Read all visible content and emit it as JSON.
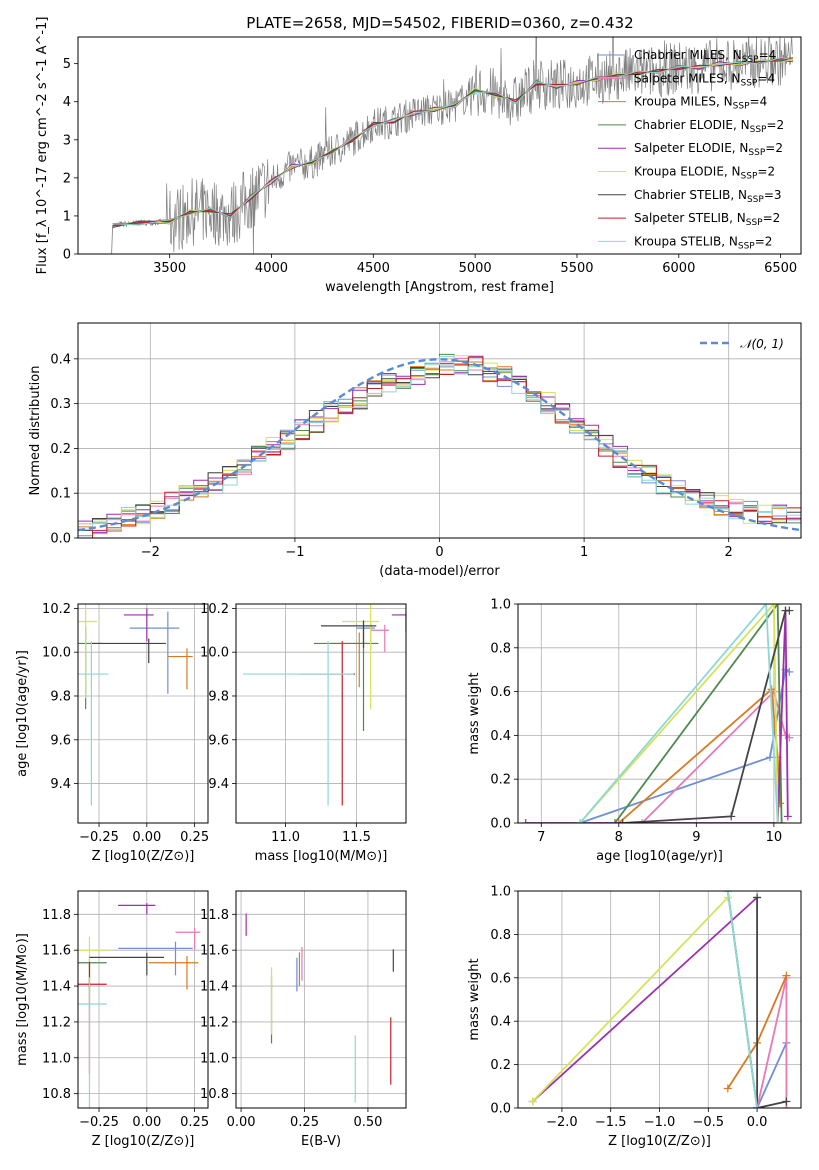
{
  "chart_data": [
    {
      "type": "line",
      "title": "PLATE=2658, MJD=54502, FIBERID=0360, z=0.432",
      "xlabel": "wavelength [Angstrom, rest frame]",
      "ylabel": "Flux [f_λ 10^-17 erg cm^-2 s^-1 A^-1]",
      "xlim": [
        3050,
        6600
      ],
      "ylim": [
        0,
        5.7
      ],
      "xticks": [
        3500,
        4000,
        4500,
        5000,
        5500,
        6000,
        6500
      ],
      "yticks": [
        0,
        1,
        2,
        3,
        4,
        5
      ],
      "grid": false,
      "legend_position": "upper-right",
      "data_color": "#808080",
      "model_continuum": {
        "x": [
          3220,
          3350,
          3500,
          3600,
          3700,
          3800,
          3900,
          4000,
          4100,
          4200,
          4300,
          4400,
          4500,
          4600,
          4700,
          4800,
          4900,
          5000,
          5100,
          5200,
          5300,
          5400,
          5500,
          5600,
          5700,
          5800,
          5900,
          6000,
          6100,
          6200,
          6300,
          6400,
          6500,
          6560
        ],
        "y": [
          0.75,
          0.82,
          0.85,
          1.1,
          1.15,
          1.0,
          1.5,
          1.9,
          2.3,
          2.4,
          2.7,
          3.0,
          3.4,
          3.5,
          3.7,
          3.8,
          3.9,
          4.3,
          4.2,
          4.0,
          4.5,
          4.4,
          4.5,
          4.6,
          4.7,
          4.75,
          4.8,
          4.9,
          4.9,
          5.0,
          5.0,
          5.05,
          5.1,
          5.1
        ]
      },
      "series": [
        {
          "name": "Chabrier MILES, N_SSP=4",
          "color": "#6f8fd9"
        },
        {
          "name": "Salpeter MILES, N_SSP=4",
          "color": "#e879b5"
        },
        {
          "name": "Kroupa MILES, N_SSP=4",
          "color": "#d97a22"
        },
        {
          "name": "Chabrier ELODIE, N_SSP=2",
          "color": "#4e8a4e"
        },
        {
          "name": "Salpeter ELODIE, N_SSP=2",
          "color": "#9b2fae"
        },
        {
          "name": "Kroupa ELODIE, N_SSP=2",
          "color": "#d4e35a"
        },
        {
          "name": "Chabrier STELIB, N_SSP=3",
          "color": "#444444"
        },
        {
          "name": "Salpeter STELIB, N_SSP=2",
          "color": "#c0202a"
        },
        {
          "name": "Kroupa STELIB, N_SSP=2",
          "color": "#8ed8d4"
        }
      ]
    },
    {
      "type": "line",
      "xlabel": "(data-model)/error",
      "ylabel": "Normed distribution",
      "xlim": [
        -2.5,
        2.5
      ],
      "ylim": [
        0,
        0.48
      ],
      "xticks": [
        -2,
        -1,
        0,
        1,
        2
      ],
      "yticks": [
        0.0,
        0.1,
        0.2,
        0.3,
        0.4
      ],
      "grid": true,
      "legend_position": "upper-right",
      "reference_curve": {
        "name": "𝒩(0, 1)",
        "style": "dashed",
        "color": "#5b8bd6"
      },
      "histogram_envelope": {
        "x": [
          -2.5,
          -2.3,
          -2.1,
          -1.9,
          -1.7,
          -1.5,
          -1.3,
          -1.1,
          -0.9,
          -0.7,
          -0.5,
          -0.3,
          -0.1,
          0.1,
          0.3,
          0.5,
          0.7,
          0.9,
          1.1,
          1.3,
          1.5,
          1.7,
          1.9,
          2.1,
          2.3,
          2.5
        ],
        "y": [
          0.02,
          0.03,
          0.05,
          0.07,
          0.1,
          0.13,
          0.17,
          0.21,
          0.25,
          0.29,
          0.32,
          0.35,
          0.37,
          0.39,
          0.38,
          0.35,
          0.31,
          0.27,
          0.22,
          0.17,
          0.13,
          0.1,
          0.08,
          0.06,
          0.05,
          0.05
        ]
      }
    },
    {
      "type": "scatter",
      "xlabel": "Z [log10(Z/Z⊙)]",
      "ylabel": "age  [log10(age/yr)]",
      "xlim": [
        -0.36,
        0.32
      ],
      "ylim": [
        9.22,
        10.22
      ],
      "xticks": [
        -0.25,
        0.0,
        0.25
      ],
      "yticks": [
        9.4,
        9.6,
        9.8,
        10.0,
        10.2
      ],
      "grid": true,
      "points": [
        {
          "x": 0.11,
          "y": 10.11,
          "xerr": 0.2,
          "yerr": 0.3,
          "color": "#6f8fd9"
        },
        {
          "x": 0.21,
          "y": 9.98,
          "xerr": 0.1,
          "yerr": 0.15,
          "color": "#d97a22"
        },
        {
          "x": -0.32,
          "y": 10.04,
          "xerr": 0.28,
          "yerr": 0.3,
          "color": "#4e8a4e"
        },
        {
          "x": 0.0,
          "y": 10.17,
          "xerr": 0.12,
          "yerr": 0.12,
          "color": "#9b2fae"
        },
        {
          "x": -0.32,
          "y": 10.14,
          "xerr": 0.2,
          "yerr": 0.35,
          "color": "#d4e35a"
        },
        {
          "x": 0.01,
          "y": 10.04,
          "xerr": 0.3,
          "yerr": 0.09,
          "color": "#444444"
        },
        {
          "x": -0.29,
          "y": 9.9,
          "xerr": 0.3,
          "yerr": 0.6,
          "color": "#8ed8d4"
        }
      ]
    },
    {
      "type": "scatter",
      "xlabel": "mass [log10(M/M⊙)]",
      "ylabel": "",
      "xlim": [
        10.65,
        11.85
      ],
      "ylim": [
        9.22,
        10.22
      ],
      "xticks": [
        11.0,
        11.5
      ],
      "yticks": [
        9.4,
        9.6,
        9.8,
        10.0,
        10.2
      ],
      "grid": true,
      "points": [
        {
          "x": 11.6,
          "y": 10.11,
          "xerr": 0.1,
          "yerr": 0.1,
          "color": "#6f8fd9"
        },
        {
          "x": 11.7,
          "y": 10.1,
          "xerr": 0.1,
          "yerr": 0.1,
          "color": "#e879b5"
        },
        {
          "x": 11.52,
          "y": 10.04,
          "xerr": 0.2,
          "yerr": 0.2,
          "color": "#d97a22"
        },
        {
          "x": 11.55,
          "y": 10.04,
          "xerr": 0.35,
          "yerr": 0.4,
          "color": "#4e8a4e"
        },
        {
          "x": 11.85,
          "y": 10.17,
          "xerr": 0.1,
          "yerr": 0.08,
          "color": "#9b2fae"
        },
        {
          "x": 11.6,
          "y": 10.14,
          "xerr": 0.2,
          "yerr": 0.4,
          "color": "#d4e35a"
        },
        {
          "x": 11.55,
          "y": 10.12,
          "xerr": 0.3,
          "yerr": 0.1,
          "color": "#444444"
        },
        {
          "x": 11.4,
          "y": 9.9,
          "xerr": 0.3,
          "yerr": 0.6,
          "color": "#c0202a"
        },
        {
          "x": 11.3,
          "y": 9.9,
          "xerr": 0.6,
          "yerr": 0.6,
          "color": "#8ed8d4"
        }
      ]
    },
    {
      "type": "line",
      "xlabel": "age  [log10(age/yr)]",
      "ylabel": "mass weight",
      "xlim": [
        6.7,
        10.35
      ],
      "ylim": [
        0,
        1.0
      ],
      "xticks": [
        7,
        8,
        9,
        10
      ],
      "yticks": [
        0.0,
        0.2,
        0.4,
        0.6,
        0.8,
        1.0
      ],
      "grid": true,
      "series": [
        {
          "color": "#6f8fd9",
          "x": [
            7.5,
            9.95,
            10.15,
            10.2
          ],
          "y": [
            0.0,
            0.3,
            0.7,
            0.69
          ]
        },
        {
          "color": "#e879b5",
          "x": [
            8.3,
            10.0,
            10.15,
            10.2
          ],
          "y": [
            0.0,
            0.6,
            0.4,
            0.39
          ]
        },
        {
          "color": "#d97a22",
          "x": [
            8.0,
            9.97,
            10.05,
            10.08
          ],
          "y": [
            0.0,
            0.61,
            0.3,
            0.09
          ]
        },
        {
          "color": "#4e8a4e",
          "x": [
            7.95,
            10.05,
            10.1
          ],
          "y": [
            0.0,
            1.0,
            0.0
          ]
        },
        {
          "color": "#9b2fae",
          "x": [
            6.8,
            10.05,
            10.15,
            10.18
          ],
          "y": [
            0.0,
            0.0,
            0.97,
            0.03
          ]
        },
        {
          "color": "#d4e35a",
          "x": [
            7.5,
            10.0,
            10.05
          ],
          "y": [
            0.0,
            1.0,
            0.0
          ]
        },
        {
          "color": "#444444",
          "x": [
            8.05,
            9.45,
            10.15,
            10.2
          ],
          "y": [
            0.0,
            0.03,
            0.97,
            0.97
          ]
        },
        {
          "color": "#8ed8d4",
          "x": [
            7.5,
            9.9,
            10.05
          ],
          "y": [
            0.0,
            1.0,
            0.0
          ]
        }
      ]
    },
    {
      "type": "scatter",
      "xlabel": "Z [log10(Z/Z⊙)]",
      "ylabel": "mass [log10(M/M⊙)]",
      "xlim": [
        -0.36,
        0.32
      ],
      "ylim": [
        10.72,
        11.93
      ],
      "xticks": [
        -0.25,
        0.0,
        0.25
      ],
      "yticks": [
        10.8,
        11.0,
        11.2,
        11.4,
        11.6,
        11.8
      ],
      "grid": true,
      "points": [
        {
          "x": 0.15,
          "y": 11.61,
          "xerr": 0.3,
          "yerr": 0.15,
          "color": "#6f8fd9"
        },
        {
          "x": 0.25,
          "y": 11.7,
          "xerr": 0.1,
          "yerr": 0.1,
          "color": "#e879b5"
        },
        {
          "x": 0.21,
          "y": 11.53,
          "xerr": 0.2,
          "yerr": 0.15,
          "color": "#d97a22"
        },
        {
          "x": -0.3,
          "y": 11.53,
          "xerr": 0.3,
          "yerr": 0.15,
          "color": "#4e8a4e"
        },
        {
          "x": 0.0,
          "y": 11.85,
          "xerr": 0.15,
          "yerr": 0.05,
          "color": "#9b2fae"
        },
        {
          "x": -0.3,
          "y": 11.6,
          "xerr": 0.3,
          "yerr": 0.3,
          "color": "#d4e35a"
        },
        {
          "x": 0.0,
          "y": 11.56,
          "xerr": 0.3,
          "yerr": 0.1,
          "color": "#444444"
        },
        {
          "x": -0.3,
          "y": 11.41,
          "xerr": 0.3,
          "yerr": 0.5,
          "color": "#c0202a"
        },
        {
          "x": -0.3,
          "y": 11.3,
          "xerr": 0.3,
          "yerr": 0.6,
          "color": "#8ed8d4"
        }
      ]
    },
    {
      "type": "scatter",
      "xlabel": "E(B-V)",
      "ylabel": "",
      "xlim": [
        -0.02,
        0.65
      ],
      "ylim": [
        10.72,
        11.93
      ],
      "xticks": [
        0.0,
        0.25,
        0.5
      ],
      "yticks": [
        10.8,
        11.0,
        11.2,
        11.4,
        11.6,
        11.8
      ],
      "grid": true,
      "points": [
        {
          "x": 0.22,
          "y": 11.52,
          "yerr": 0.15,
          "color": "#6f8fd9"
        },
        {
          "x": 0.24,
          "y": 11.58,
          "yerr": 0.15,
          "color": "#e879b5"
        },
        {
          "x": 0.23,
          "y": 11.55,
          "yerr": 0.15,
          "color": "#d97a22"
        },
        {
          "x": 0.12,
          "y": 11.38,
          "yerr": 0.3,
          "color": "#4e8a4e"
        },
        {
          "x": 0.02,
          "y": 11.78,
          "yerr": 0.1,
          "color": "#9b2fae"
        },
        {
          "x": 0.12,
          "y": 11.43,
          "yerr": 0.3,
          "color": "#d4e35a"
        },
        {
          "x": 0.6,
          "y": 11.58,
          "yerr": 0.1,
          "color": "#444444"
        },
        {
          "x": 0.59,
          "y": 11.15,
          "yerr": 0.3,
          "color": "#c0202a"
        },
        {
          "x": 0.45,
          "y": 11.05,
          "yerr": 0.3,
          "color": "#8ed8d4"
        }
      ]
    },
    {
      "type": "line",
      "xlabel": "Z [log10(Z/Z⊙)]",
      "ylabel": "mass weight",
      "xlim": [
        -2.45,
        0.45
      ],
      "ylim": [
        0,
        1.0
      ],
      "xticks": [
        -2.0,
        -1.5,
        -1.0,
        -0.5,
        0.0
      ],
      "yticks": [
        0.0,
        0.2,
        0.4,
        0.6,
        0.8,
        1.0
      ],
      "grid": true,
      "series": [
        {
          "color": "#6f8fd9",
          "x": [
            -0.3,
            0.0,
            0.3
          ],
          "y": [
            1.0,
            0.0,
            0.3
          ]
        },
        {
          "color": "#e879b5",
          "x": [
            0.0,
            0.3,
            0.3
          ],
          "y": [
            0.0,
            0.6,
            0.0
          ]
        },
        {
          "color": "#d97a22",
          "x": [
            -0.3,
            0.0,
            0.3
          ],
          "y": [
            0.09,
            0.3,
            0.61
          ]
        },
        {
          "color": "#4e8a4e",
          "x": [
            -0.3,
            0.0
          ],
          "y": [
            1.0,
            0.0
          ]
        },
        {
          "color": "#9b2fae",
          "x": [
            -2.3,
            0.0
          ],
          "y": [
            0.03,
            0.97
          ]
        },
        {
          "color": "#d4e35a",
          "x": [
            -2.3,
            -0.3
          ],
          "y": [
            0.03,
            0.97
          ]
        },
        {
          "color": "#444444",
          "x": [
            0.0,
            0.0,
            0.3
          ],
          "y": [
            0.97,
            0.0,
            0.03
          ]
        },
        {
          "color": "#8ed8d4",
          "x": [
            -0.3,
            0.0
          ],
          "y": [
            1.0,
            0.0
          ]
        }
      ]
    }
  ]
}
